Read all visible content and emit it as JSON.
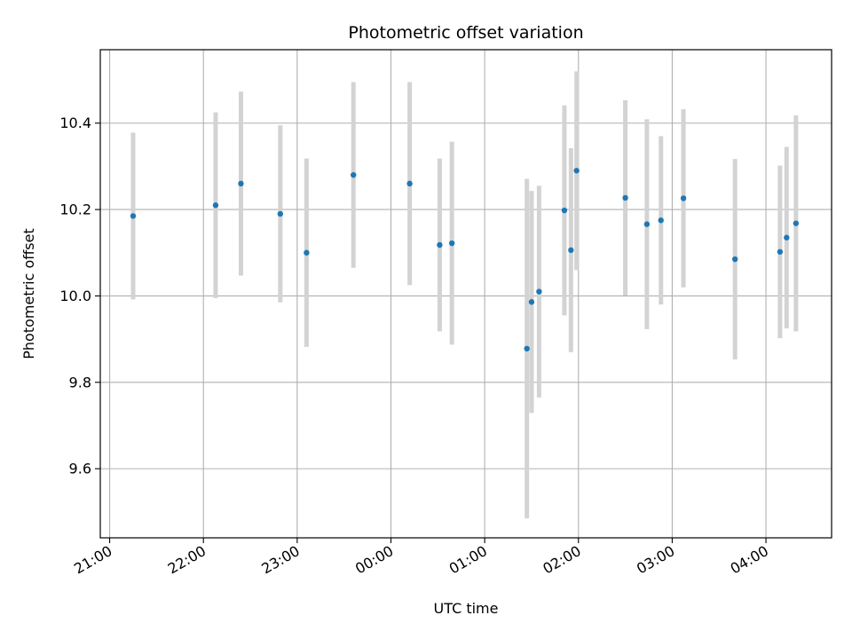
{
  "chart_data": {
    "type": "scatter",
    "title": "Photometric offset variation",
    "xlabel": "UTC time",
    "ylabel": "Photometric offset",
    "grid": true,
    "x_unit": "UTC time (hours, continuing past midnight)",
    "x_ticks": [
      "21:00",
      "22:00",
      "23:00",
      "00:00",
      "01:00",
      "02:00",
      "03:00",
      "04:00"
    ],
    "x_tick_values": [
      21,
      22,
      23,
      24,
      25,
      26,
      27,
      28
    ],
    "xlim": [
      20.9,
      28.7
    ],
    "y_ticks": [
      "9.6",
      "9.8",
      "10.0",
      "10.2",
      "10.4"
    ],
    "y_tick_values": [
      9.6,
      9.8,
      10.0,
      10.2,
      10.4
    ],
    "ylim": [
      9.44,
      10.57
    ],
    "colors": {
      "point": "#1f77b4",
      "errorbar": "#d3d3d3",
      "grid": "#b0b0b0"
    },
    "points": [
      {
        "x": 21.25,
        "y": 10.185,
        "err": 0.193
      },
      {
        "x": 22.13,
        "y": 10.21,
        "err": 0.215
      },
      {
        "x": 22.4,
        "y": 10.26,
        "err": 0.213
      },
      {
        "x": 22.82,
        "y": 10.19,
        "err": 0.205
      },
      {
        "x": 23.1,
        "y": 10.1,
        "err": 0.218
      },
      {
        "x": 23.6,
        "y": 10.28,
        "err": 0.215
      },
      {
        "x": 24.2,
        "y": 10.26,
        "err": 0.235
      },
      {
        "x": 24.52,
        "y": 10.118,
        "err": 0.2
      },
      {
        "x": 24.65,
        "y": 10.122,
        "err": 0.235
      },
      {
        "x": 25.45,
        "y": 9.878,
        "err": 0.393
      },
      {
        "x": 25.5,
        "y": 9.986,
        "err": 0.257
      },
      {
        "x": 25.58,
        "y": 10.01,
        "err": 0.245
      },
      {
        "x": 25.85,
        "y": 10.198,
        "err": 0.243
      },
      {
        "x": 25.92,
        "y": 10.106,
        "err": 0.236
      },
      {
        "x": 25.98,
        "y": 10.29,
        "err": 0.23
      },
      {
        "x": 26.5,
        "y": 10.227,
        "err": 0.226
      },
      {
        "x": 26.73,
        "y": 10.166,
        "err": 0.243
      },
      {
        "x": 26.88,
        "y": 10.175,
        "err": 0.195
      },
      {
        "x": 27.12,
        "y": 10.226,
        "err": 0.206
      },
      {
        "x": 27.67,
        "y": 10.085,
        "err": 0.232
      },
      {
        "x": 28.15,
        "y": 10.102,
        "err": 0.2
      },
      {
        "x": 28.22,
        "y": 10.135,
        "err": 0.21
      },
      {
        "x": 28.32,
        "y": 10.168,
        "err": 0.25
      }
    ]
  }
}
